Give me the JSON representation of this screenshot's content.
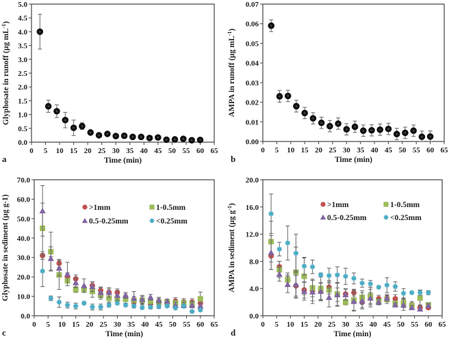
{
  "figure": {
    "panels": [
      "a",
      "b",
      "c",
      "d"
    ]
  },
  "chart_data": [
    {
      "id": "a",
      "type": "scatter",
      "panel_label": "a",
      "title": "",
      "xlabel": "Time (min)",
      "ylabel": "Glyphosate in runoff (µg mL-1)",
      "ylabel_parts": {
        "base": "Glyphosate in runoff (µg mL",
        "sup": "-1",
        "tail": ")"
      },
      "xlim": [
        0,
        65
      ],
      "ylim": [
        0,
        5
      ],
      "xticks": [
        0,
        5,
        10,
        15,
        20,
        25,
        30,
        35,
        40,
        45,
        50,
        55,
        60,
        65
      ],
      "yticks": [
        "0.0",
        "0.5",
        "1.0",
        "1.5",
        "2.0",
        "2.5",
        "3.0",
        "3.5",
        "4.0",
        "4.5",
        "5.0"
      ],
      "grid": false,
      "legend": null,
      "series": [
        {
          "name": "Glyphosate",
          "color": "#111111",
          "marker": "circle",
          "x": [
            3,
            6,
            9,
            12,
            15,
            18,
            21,
            24,
            27,
            30,
            33,
            36,
            39,
            42,
            45,
            48,
            51,
            54,
            57,
            60
          ],
          "y": [
            4.0,
            1.3,
            1.12,
            0.8,
            0.52,
            0.58,
            0.35,
            0.25,
            0.3,
            0.22,
            0.23,
            0.19,
            0.19,
            0.15,
            0.17,
            0.09,
            0.1,
            0.12,
            0.07,
            0.08
          ],
          "err": [
            0.63,
            0.22,
            0.23,
            0.28,
            0.28,
            0.12,
            0.05,
            0.03,
            0.05,
            0.07,
            0.04,
            0.03,
            0.03,
            0.03,
            0.03,
            0.03,
            0.03,
            0.03,
            0.02,
            0.02
          ]
        }
      ]
    },
    {
      "id": "b",
      "type": "scatter",
      "panel_label": "b",
      "title": "",
      "xlabel": "Time (min)",
      "ylabel": "AMPA in runoff (µg mL-1)",
      "ylabel_parts": {
        "base": "AMPA  in runoff (µg mL",
        "sup": "-1",
        "tail": ")"
      },
      "xlim": [
        0,
        65
      ],
      "ylim": [
        0,
        0.07
      ],
      "xticks": [
        0,
        5,
        10,
        15,
        20,
        25,
        30,
        35,
        40,
        45,
        50,
        55,
        60,
        65
      ],
      "yticks": [
        "0.00",
        "0.01",
        "0.02",
        "0.03",
        "0.04",
        "0.05",
        "0.06",
        "0.07"
      ],
      "grid": false,
      "legend": null,
      "series": [
        {
          "name": "AMPA",
          "color": "#111111",
          "marker": "circle",
          "x": [
            3,
            6,
            9,
            12,
            15,
            18,
            21,
            24,
            27,
            30,
            33,
            36,
            39,
            42,
            45,
            48,
            51,
            54,
            57,
            60
          ],
          "y": [
            0.059,
            0.023,
            0.0232,
            0.018,
            0.0145,
            0.0118,
            0.0095,
            0.0078,
            0.0091,
            0.0062,
            0.0075,
            0.0055,
            0.0057,
            0.006,
            0.0064,
            0.0038,
            0.0044,
            0.0055,
            0.0024,
            0.0025
          ],
          "err": [
            0.003,
            0.003,
            0.0029,
            0.003,
            0.0029,
            0.0029,
            0.0029,
            0.0029,
            0.0029,
            0.0029,
            0.0029,
            0.0029,
            0.0029,
            0.0029,
            0.0029,
            0.0029,
            0.0029,
            0.0029,
            0.0029,
            0.0029
          ]
        }
      ]
    },
    {
      "id": "c",
      "type": "scatter",
      "panel_label": "c",
      "title": "",
      "xlabel": "Time (min)",
      "ylabel": "Glyphosate in sediment (µg g-1)",
      "ylabel_parts": {
        "base": "Glyphosate in sediment (µg g-1)",
        "sup": "",
        "tail": ""
      },
      "xlim": [
        0,
        65
      ],
      "ylim": [
        0,
        70
      ],
      "xticks": [
        0,
        5,
        10,
        15,
        20,
        25,
        30,
        35,
        40,
        45,
        50,
        55,
        60,
        65
      ],
      "yticks": [
        "0.0",
        "10.0",
        "20.0",
        "30.0",
        "40.0",
        "50.0",
        "60.0",
        "70.0"
      ],
      "grid": false,
      "legend": "top-center",
      "series": [
        {
          "name": ">1mm",
          "color": "#c0504d",
          "marker": "circle",
          "x": [
            3,
            6,
            9,
            12,
            15,
            18,
            21,
            24,
            27,
            30,
            33,
            36,
            39,
            42,
            45,
            48,
            51,
            54,
            57,
            60
          ],
          "y": [
            31,
            33,
            27,
            20,
            19,
            14,
            15.5,
            13,
            12,
            12,
            9.5,
            7,
            7.5,
            6,
            6.5,
            7,
            7.5,
            7,
            7,
            6.5
          ],
          "err": [
            2,
            2.5,
            2,
            2,
            2,
            1.5,
            1.8,
            1.8,
            1.8,
            1.8,
            1.8,
            1.8,
            1.8,
            1.8,
            1.8,
            1.5,
            1.8,
            1.8,
            1.8,
            1.8
          ]
        },
        {
          "name": "1-0.5mm",
          "color": "#9bbb59",
          "marker": "square",
          "x": [
            3,
            6,
            9,
            12,
            15,
            18,
            21,
            24,
            27,
            30,
            33,
            36,
            39,
            42,
            45,
            48,
            51,
            54,
            57,
            60
          ],
          "y": [
            45,
            33,
            21,
            18,
            13.5,
            13.5,
            12.5,
            10.5,
            9,
            8.5,
            8.5,
            8,
            8,
            7.5,
            7,
            7,
            6.5,
            6.5,
            6,
            8.7
          ],
          "err": [
            13,
            10,
            7.5,
            2.5,
            1.5,
            1.5,
            3,
            2,
            2,
            2,
            2,
            2,
            2,
            2,
            2,
            1.5,
            1.5,
            1.5,
            1.5,
            3.5
          ]
        },
        {
          "name": "0.5-0.25mm",
          "color": "#8064a2",
          "marker": "triangle",
          "x": [
            3,
            6,
            9,
            12,
            15,
            18,
            21,
            24,
            27,
            30,
            33,
            36,
            39,
            42,
            45,
            48,
            51,
            54,
            57,
            60
          ],
          "y": [
            54,
            29.5,
            24.5,
            21.5,
            17,
            15.5,
            15,
            12,
            12,
            10.5,
            10.5,
            9,
            8.5,
            9.5,
            8,
            7.5,
            5.5,
            5.5,
            5.5,
            5
          ],
          "err": [
            13,
            6,
            4,
            6,
            2.5,
            3.5,
            2.5,
            2.5,
            2.5,
            2.5,
            1.5,
            3.5,
            2,
            1.5,
            1.5,
            1,
            1.5,
            1.5,
            1.5,
            1.5
          ]
        },
        {
          "name": "<0.25mm",
          "color": "#4bacc6",
          "marker": "star",
          "x": [
            3,
            6,
            9,
            12,
            15,
            18,
            21,
            24,
            27,
            30,
            33,
            36,
            39,
            42,
            45,
            48,
            51,
            54,
            57,
            60
          ],
          "y": [
            23,
            9,
            7,
            5.5,
            5,
            6.5,
            4.5,
            4.5,
            5.5,
            6.5,
            5.5,
            5,
            4.2,
            4.5,
            4.7,
            5,
            4,
            5,
            2.2,
            3
          ],
          "err": [
            8,
            1.2,
            2.7,
            1.5,
            1.5,
            0.8,
            1.5,
            1.5,
            1,
            0.8,
            0.8,
            1,
            0.8,
            1,
            1,
            0.8,
            0.8,
            0.8,
            0.5,
            0.8
          ]
        }
      ]
    },
    {
      "id": "d",
      "type": "scatter",
      "panel_label": "d",
      "title": "",
      "xlabel": "Time (min)",
      "ylabel": "AMPA in sediment (µg g-1)",
      "ylabel_parts": {
        "base": "AMPA in sediment (µg g",
        "sup": "-1",
        "tail": ")"
      },
      "xlim": [
        0,
        65
      ],
      "ylim": [
        0,
        20
      ],
      "xticks": [
        0,
        5,
        10,
        15,
        20,
        25,
        30,
        35,
        40,
        45,
        50,
        55,
        60,
        65
      ],
      "yticks": [
        "0.0",
        "4.0",
        "8.0",
        "12.0",
        "16.0",
        "20.0"
      ],
      "grid": false,
      "legend": "top-center",
      "series": [
        {
          "name": ">1mm",
          "color": "#c0504d",
          "marker": "circle",
          "x": [
            3,
            6,
            9,
            12,
            15,
            18,
            21,
            24,
            27,
            30,
            33,
            36,
            39,
            42,
            45,
            48,
            51,
            54,
            57,
            60
          ],
          "y": [
            8.8,
            7.2,
            5.2,
            4.4,
            3.8,
            3.7,
            3.6,
            4.2,
            3.1,
            3.2,
            3.4,
            2.0,
            2.6,
            2.5,
            2.6,
            2.5,
            1.9,
            1.6,
            1.2,
            1.2
          ],
          "err": [
            2.0,
            0.8,
            0.8,
            1.5,
            1.2,
            1.5,
            1.3,
            1.0,
            1.0,
            0.8,
            0.5,
            0.8,
            0.8,
            0.5,
            0.5,
            0.6,
            0.6,
            0.5,
            0.4,
            0.3
          ]
        },
        {
          "name": "1-0.5mm",
          "color": "#9bbb59",
          "marker": "square",
          "x": [
            3,
            6,
            9,
            12,
            15,
            18,
            21,
            24,
            27,
            30,
            33,
            36,
            39,
            42,
            45,
            48,
            51,
            54,
            57,
            60
          ],
          "y": [
            10.9,
            6.8,
            5.3,
            6.4,
            5.8,
            4.1,
            4.0,
            3.8,
            3.2,
            2.0,
            2.3,
            2.7,
            2.9,
            2.1,
            2.4,
            1.8,
            1.9,
            1.5,
            2.6,
            1.6
          ],
          "err": [
            3.0,
            1.2,
            1.0,
            3.7,
            2.7,
            1.3,
            1.8,
            1.2,
            1.7,
            0.4,
            1.5,
            1.0,
            1.3,
            0.4,
            0.6,
            0.4,
            0.7,
            0.4,
            1.1,
            0.3
          ]
        },
        {
          "name": "0.5-0.25mm",
          "color": "#8064a2",
          "marker": "triangle",
          "x": [
            3,
            6,
            9,
            12,
            15,
            18,
            21,
            24,
            27,
            30,
            33,
            36,
            39,
            42,
            45,
            48,
            51,
            54,
            57,
            60
          ],
          "y": [
            9.3,
            6.1,
            4.6,
            4.6,
            3.6,
            3.5,
            3.6,
            2.7,
            3.1,
            3.1,
            2.1,
            2.2,
            2.6,
            2.0,
            2.6,
            1.6,
            1.6,
            1.2,
            1.0,
            1.5
          ],
          "err": [
            2.5,
            1.0,
            1.2,
            2.0,
            1.3,
            1.7,
            1.2,
            1.4,
            1.7,
            0.8,
            1.4,
            1.2,
            1.3,
            0.4,
            0.5,
            0.3,
            0.8,
            0.3,
            0.2,
            0.3
          ]
        },
        {
          "name": "<0.25mm",
          "color": "#4bacc6",
          "marker": "star",
          "x": [
            3,
            6,
            9,
            12,
            15,
            18,
            21,
            24,
            27,
            30,
            33,
            36,
            39,
            42,
            45,
            48,
            51,
            54,
            57,
            60
          ],
          "y": [
            15.0,
            9.8,
            10.7,
            9.2,
            7.3,
            7.2,
            6.0,
            5.9,
            6.0,
            5.8,
            5.5,
            4.8,
            4.7,
            4.2,
            4.5,
            4.3,
            3.3,
            3.4,
            3.4,
            3.4
          ],
          "err": [
            2.9,
            1.0,
            2.5,
            2.8,
            1.3,
            1.0,
            0.3,
            1.1,
            1.2,
            1.2,
            0.8,
            0.6,
            0.5,
            0.2,
            1.1,
            0.7,
            0.7,
            0.2,
            0.4,
            0.3
          ]
        }
      ]
    }
  ]
}
